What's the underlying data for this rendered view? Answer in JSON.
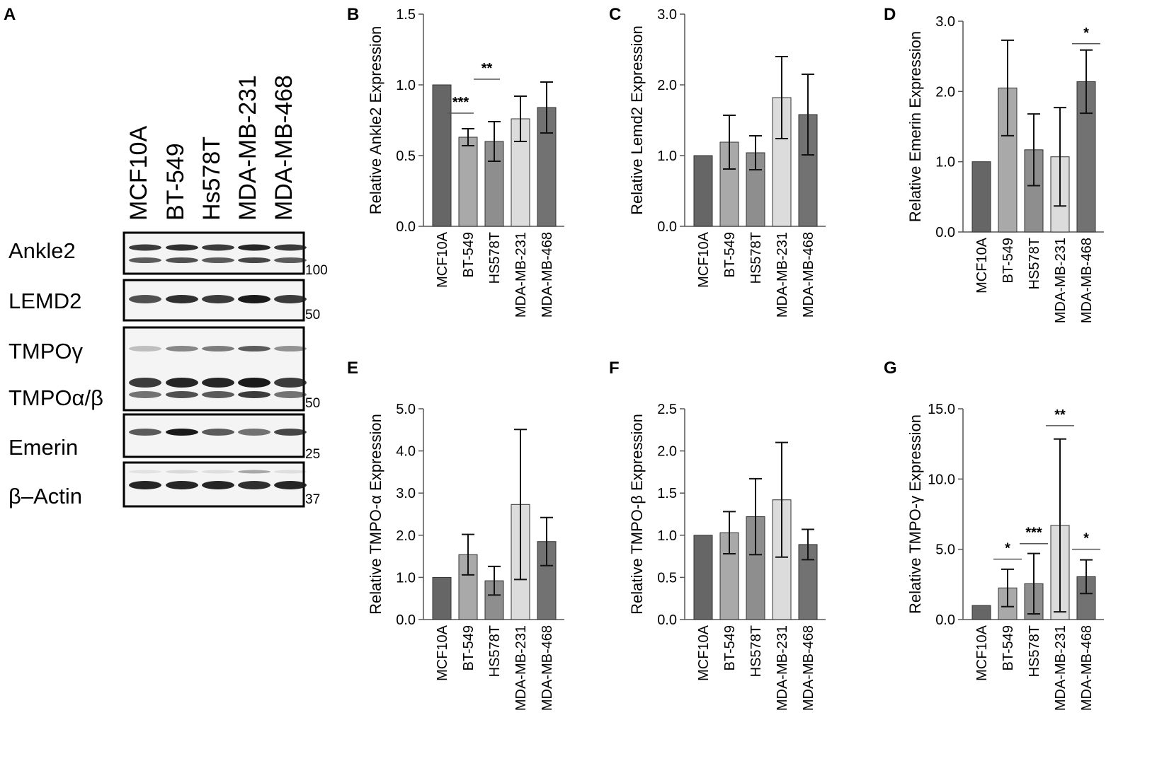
{
  "blot": {
    "panel_letter": "A",
    "lanes": [
      "MCF10A",
      "BT-549",
      "Hs578T",
      "MDA-MB-231",
      "MDA-MB-468"
    ],
    "rows": [
      {
        "label": "Ankle2",
        "marker": "100"
      },
      {
        "label": "LEMD2",
        "marker": "50"
      },
      {
        "label": "TMPOγ",
        "marker": ""
      },
      {
        "label": "TMPOα/β",
        "marker": "50"
      },
      {
        "label": "Emerin",
        "marker": "25"
      },
      {
        "label": "β–Actin",
        "marker": "37"
      }
    ]
  },
  "colors": {
    "MCF10A": "#666666",
    "BT-549": "#a9a9a9",
    "HS578T": "#8e8e8e",
    "MDA-MB-231": "#dcdcdc",
    "MDA-MB-468": "#727272"
  },
  "chart_data": [
    {
      "panel": "B",
      "type": "bar",
      "ylabel": "Relative Ankle2 Expression",
      "ylim": [
        0,
        1.5
      ],
      "yticks": [
        "0.0",
        "0.5",
        "1.0",
        "1.5"
      ],
      "categories": [
        "MCF10A",
        "BT-549",
        "HS578T",
        "MDA-MB-231",
        "MDA-MB-468"
      ],
      "values": [
        1.0,
        0.63,
        0.6,
        0.76,
        0.84
      ],
      "errors": [
        0,
        0.06,
        0.14,
        0.16,
        0.18
      ],
      "significance": [
        {
          "from": "MCF10A",
          "to": "BT-549",
          "label": "***",
          "y": 0.8
        },
        {
          "from": "BT-549",
          "to": "HS578T",
          "label": "**",
          "y": 1.04
        }
      ]
    },
    {
      "panel": "C",
      "type": "bar",
      "ylabel": "Relative Lemd2 Expression",
      "ylim": [
        0,
        3.0
      ],
      "yticks": [
        "0.0",
        "1.0",
        "2.0",
        "3.0"
      ],
      "categories": [
        "MCF10A",
        "BT-549",
        "HS578T",
        "MDA-MB-231",
        "MDA-MB-468"
      ],
      "values": [
        1.0,
        1.19,
        1.04,
        1.82,
        1.58
      ],
      "errors": [
        0,
        0.38,
        0.24,
        0.58,
        0.57
      ],
      "significance": []
    },
    {
      "panel": "D",
      "type": "bar",
      "ylabel": "Relative Emerin Expression",
      "ylim": [
        0,
        3.0
      ],
      "yticks": [
        "0.0",
        "1.0",
        "2.0",
        "3.0"
      ],
      "categories": [
        "MCF10A",
        "BT-549",
        "HS578T",
        "MDA-MB-231",
        "MDA-MB-468"
      ],
      "values": [
        1.0,
        2.05,
        1.17,
        1.07,
        2.14
      ],
      "errors": [
        0,
        0.68,
        0.51,
        0.7,
        0.45
      ],
      "significance": [
        {
          "from": "MCF10A",
          "to": "MDA-MB-468",
          "label": "*",
          "y": 2.68,
          "short": true
        }
      ]
    },
    {
      "panel": "E",
      "type": "bar",
      "ylabel": "Relative TMPO-α Expression",
      "ylim": [
        0,
        5.0
      ],
      "yticks": [
        "0.0",
        "1.0",
        "2.0",
        "3.0",
        "4.0",
        "5.0"
      ],
      "categories": [
        "MCF10A",
        "BT-549",
        "HS578T",
        "MDA-MB-231",
        "MDA-MB-468"
      ],
      "values": [
        1.0,
        1.54,
        0.92,
        2.73,
        1.85
      ],
      "errors": [
        0,
        0.48,
        0.34,
        1.78,
        0.57
      ],
      "significance": []
    },
    {
      "panel": "F",
      "type": "bar",
      "ylabel": "Relative TMPO-β Expression",
      "ylim": [
        0,
        2.5
      ],
      "yticks": [
        "0.0",
        "0.5",
        "1.0",
        "1.5",
        "2.0",
        "2.5"
      ],
      "categories": [
        "MCF10A",
        "BT-549",
        "HS578T",
        "MDA-MB-231",
        "MDA-MB-468"
      ],
      "values": [
        1.0,
        1.03,
        1.22,
        1.42,
        0.89
      ],
      "errors": [
        0,
        0.25,
        0.45,
        0.68,
        0.18
      ],
      "significance": []
    },
    {
      "panel": "G",
      "type": "bar",
      "ylabel": "Relative TMPO-γ Expression",
      "ylim": [
        0,
        15.0
      ],
      "yticks": [
        "0.0",
        "5.0",
        "10.0",
        "15.0"
      ],
      "categories": [
        "MCF10A",
        "BT-549",
        "HS578T",
        "MDA-MB-231",
        "MDA-MB-468"
      ],
      "values": [
        1.0,
        2.25,
        2.55,
        6.7,
        3.05
      ],
      "errors": [
        0,
        1.33,
        2.15,
        6.15,
        1.2
      ],
      "significance": [
        {
          "from": "MCF10A",
          "to": "BT-549",
          "label": "*",
          "y": 4.3,
          "short": true,
          "side": "right"
        },
        {
          "from": "BT-549",
          "to": "HS578T",
          "label": "***",
          "y": 5.4,
          "short": true,
          "side": "right"
        },
        {
          "from": "HS578T",
          "to": "MDA-MB-231",
          "label": "**",
          "y": 13.8,
          "short": true,
          "side": "right"
        },
        {
          "from": "MDA-MB-231",
          "to": "MDA-MB-468",
          "label": "*",
          "y": 5.0,
          "short": true,
          "side": "right"
        }
      ]
    }
  ]
}
